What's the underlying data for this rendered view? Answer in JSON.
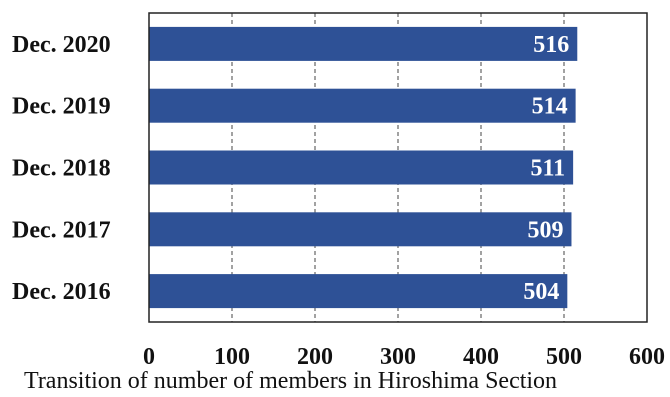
{
  "chart_data": {
    "type": "bar",
    "orientation": "horizontal",
    "categories": [
      "Dec. 2020",
      "Dec. 2019",
      "Dec. 2018",
      "Dec. 2017",
      "Dec. 2016"
    ],
    "values": [
      516,
      514,
      511,
      509,
      504
    ],
    "xlim": [
      0,
      600
    ],
    "xticks": [
      0,
      100,
      200,
      300,
      400,
      500,
      600
    ],
    "grid": "vertical dashed",
    "bar_color": "#2e5196",
    "caption": "Transition of number of members in Hiroshima Section"
  }
}
